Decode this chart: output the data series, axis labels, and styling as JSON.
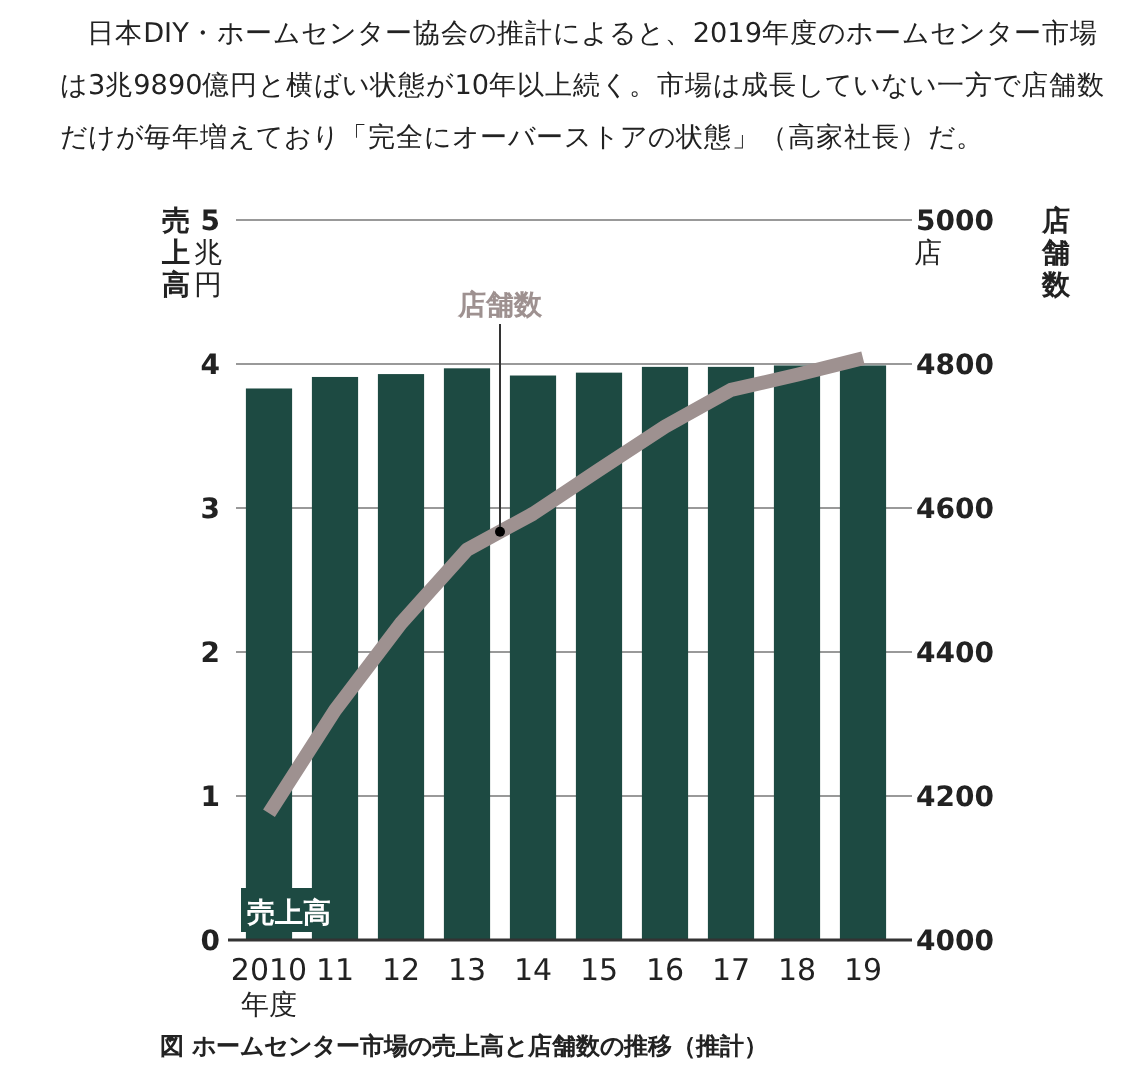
{
  "chart_data": {
    "type": "bar",
    "title": "図 ホームセンター市場の売上高と店舗数の推移（推計）",
    "annotations": [
      "日本DIY・ホームセンター協会の推計によると、2019年度のホームセンター市場は3兆9890億円と横ばい状態が10年以上続く。市場は成長していない一方で店舗数だけが毎年増えており「完全にオーバーストアの状態」（高家社長）だ。",
      "兆円",
      "店"
    ],
    "xlabel": "年度",
    "ylabel": "売上高",
    "y2label": "店舗数",
    "categories": [
      "2010",
      "11",
      "12",
      "13",
      "14",
      "15",
      "16",
      "17",
      "18",
      "19"
    ],
    "series": [
      {
        "name": "売上高",
        "color": "#1d4a42",
        "values": [
          3.83,
          3.91,
          3.93,
          3.97,
          3.92,
          3.94,
          3.98,
          3.98,
          3.99,
          3.99
        ]
      },
      {
        "name": "店舗数",
        "type": "line",
        "axis": "y2",
        "color": "#9e9190",
        "values": [
          4176,
          4319,
          4440,
          4542,
          4592,
          4653,
          4713,
          4764,
          4785,
          4808
        ]
      }
    ],
    "ylim": [
      0,
      5
    ],
    "yticks": [
      0,
      1,
      2,
      3,
      4,
      5
    ],
    "y2lim": [
      4000,
      5000
    ],
    "y2ticks": [
      4000,
      4200,
      4400,
      4600,
      4800,
      5000
    ],
    "grid": "y",
    "legend": false,
    "marker": "none",
    "line_style": "solid"
  }
}
